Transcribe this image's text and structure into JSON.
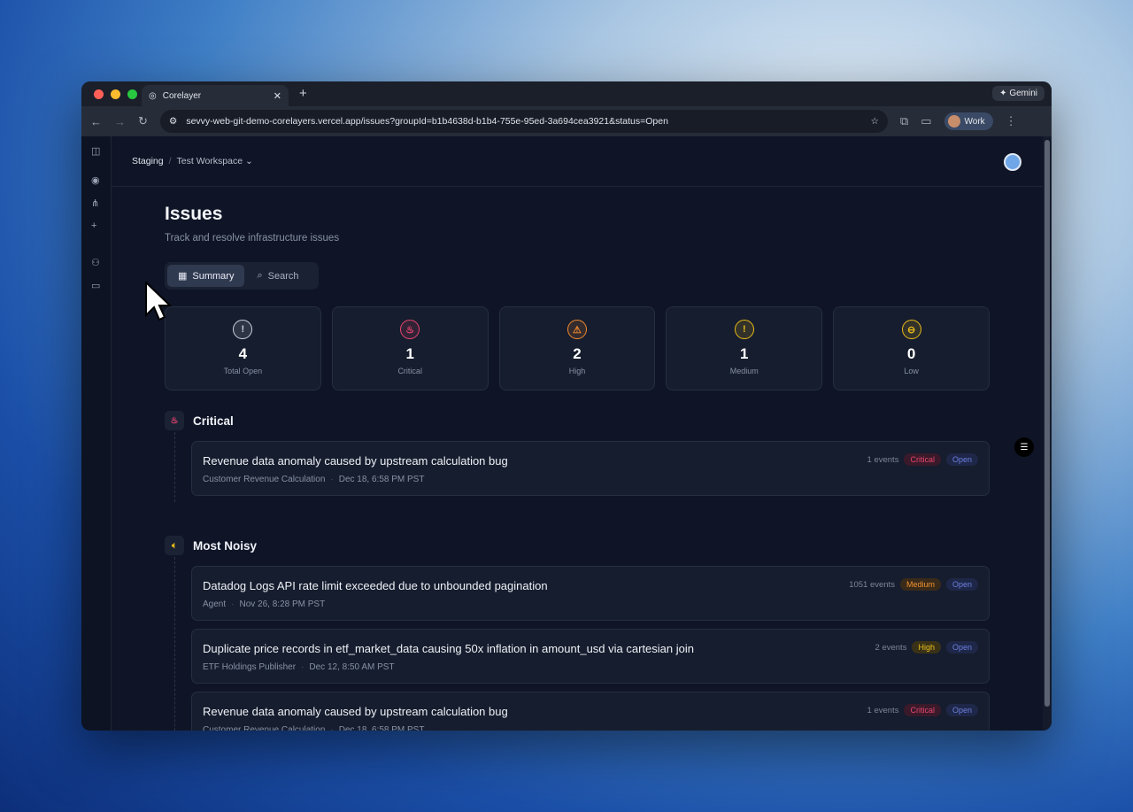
{
  "browser": {
    "tab_title": "Corelayer",
    "url": "sevvy-web-git-demo-corelayers.vercel.app/issues?groupId=b1b4638d-b1b4-755e-95ed-3a694cea3921&status=Open",
    "gemini": "✦ Gemini",
    "profile": "Work"
  },
  "breadcrumb": {
    "env": "Staging",
    "workspace": "Test Workspace"
  },
  "page": {
    "title": "Issues",
    "subtitle": "Track and resolve infrastructure issues"
  },
  "tabs": [
    {
      "label": "Summary",
      "active": true
    },
    {
      "label": "Search",
      "active": false
    }
  ],
  "stats": [
    {
      "value": "4",
      "label": "Total Open",
      "color": "#c9d1e0"
    },
    {
      "value": "1",
      "label": "Critical",
      "color": "#e8456f"
    },
    {
      "value": "2",
      "label": "High",
      "color": "#f0882e"
    },
    {
      "value": "1",
      "label": "Medium",
      "color": "#e8b81a"
    },
    {
      "value": "0",
      "label": "Low",
      "color": "#e8b81a"
    }
  ],
  "sections": [
    {
      "title": "Critical",
      "issues": [
        {
          "title": "Revenue data anomaly caused by upstream calculation bug",
          "source": "Customer Revenue Calculation",
          "time": "Dec 18, 6:58 PM PST",
          "events": "1 events",
          "severity": "Critical",
          "status": "Open"
        }
      ]
    },
    {
      "title": "Most Noisy",
      "issues": [
        {
          "title": "Datadog Logs API rate limit exceeded due to unbounded pagination",
          "source": "Agent",
          "time": "Nov 26, 8:28 PM PST",
          "events": "1051 events",
          "severity": "Medium",
          "status": "Open"
        },
        {
          "title": "Duplicate price records in etf_market_data causing 50x inflation in amount_usd via cartesian join",
          "source": "ETF Holdings Publisher",
          "time": "Dec 12, 8:50 AM PST",
          "events": "2 events",
          "severity": "High",
          "status": "Open"
        },
        {
          "title": "Revenue data anomaly caused by upstream calculation bug",
          "source": "Customer Revenue Calculation",
          "time": "Dec 18, 6:58 PM PST",
          "events": "1 events",
          "severity": "Critical",
          "status": "Open"
        }
      ]
    }
  ]
}
